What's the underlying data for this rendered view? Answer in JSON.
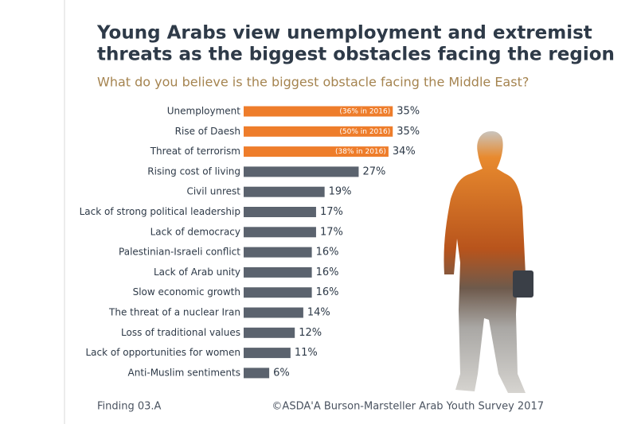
{
  "chart_data": {
    "type": "barh",
    "title": [
      "Young Arabs view unemployment and extremist",
      "threats as the biggest obstacles facing the region"
    ],
    "subtitle": "What do you believe is the biggest obstacle facing the Middle East?",
    "categories": [
      "Unemployment",
      "Rise of Daesh",
      "Threat of terrorism",
      "Rising cost of living",
      "Civil unrest",
      "Lack of strong political leadership",
      "Lack of democracy",
      "Palestinian-Israeli conflict",
      "Lack of Arab unity",
      "Slow economic growth",
      "The threat of a nuclear Iran",
      "Loss of traditional values",
      "Lack of opportunities for women",
      "Anti-Muslim sentiments"
    ],
    "values": [
      35,
      35,
      34,
      27,
      19,
      17,
      17,
      16,
      16,
      16,
      14,
      12,
      11,
      6
    ],
    "value_labels": [
      "35%",
      "35%",
      "34%",
      "27%",
      "19%",
      "17%",
      "17%",
      "16%",
      "16%",
      "16%",
      "14%",
      "12%",
      "11%",
      "6%"
    ],
    "notes": [
      "(36% in 2016)",
      "(50% in 2016)",
      "(38% in 2016)"
    ],
    "colors": [
      "#ee7d2b",
      "#ee7d2b",
      "#ee7d2b",
      "#5b636e",
      "#5b636e",
      "#5b636e",
      "#5b636e",
      "#5b636e",
      "#5b636e",
      "#5b636e",
      "#5b636e",
      "#5b636e",
      "#5b636e",
      "#5b636e"
    ],
    "footer_left": "Finding 03.A",
    "footer_right": "©ASDA'A Burson-Marsteller Arab Youth Survey 2017"
  }
}
